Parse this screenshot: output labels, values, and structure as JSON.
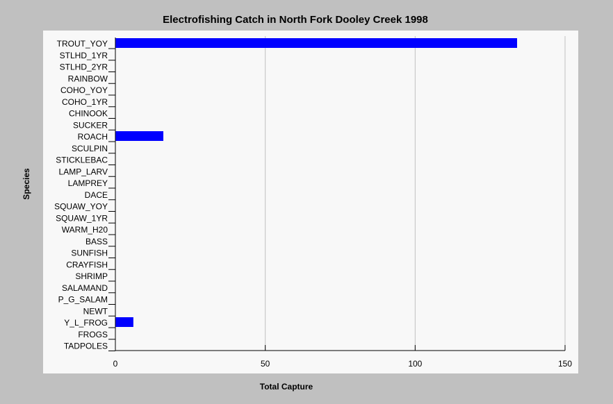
{
  "chart_data": {
    "type": "bar",
    "orientation": "horizontal",
    "title": "Electrofishing Catch in North Fork Dooley Creek 1998",
    "xlabel": "Total Capture",
    "ylabel": "Species",
    "xlim": [
      0,
      150
    ],
    "xticks": [
      "0",
      "50",
      "100",
      "150"
    ],
    "grid": true,
    "bar_color": "#0000ff",
    "plot_background": "#f8f8f8",
    "categories": [
      "TROUT_YOY",
      "STLHD_1YR",
      "STLHD_2YR",
      "RAINBOW",
      "COHO_YOY",
      "COHO_1YR",
      "CHINOOK",
      "SUCKER",
      "ROACH",
      "SCULPIN",
      "STICKLEBAC",
      "LAMP_LARV",
      "LAMPREY",
      "DACE",
      "SQUAW_YOY",
      "SQUAW_1YR",
      "WARM_H20",
      "BASS",
      "SUNFISH",
      "CRAYFISH",
      "SHRIMP",
      "SALAMAND",
      "P_G_SALAM",
      "NEWT",
      "Y_L_FROG",
      "FROGS",
      "TADPOLES"
    ],
    "values": [
      134,
      0,
      0,
      0,
      0,
      0,
      0,
      0,
      16,
      0,
      0,
      0,
      0,
      0,
      0,
      0,
      0,
      0,
      0,
      0,
      0,
      0,
      0,
      0,
      6,
      0,
      0
    ]
  }
}
